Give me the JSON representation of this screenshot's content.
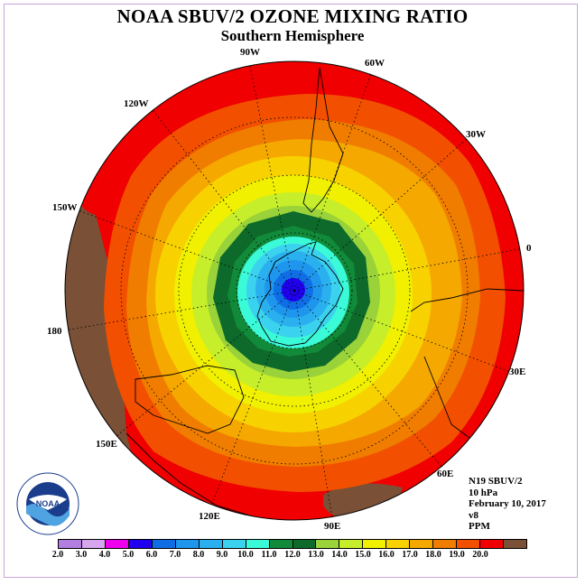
{
  "title": "NOAA SBUV/2 OZONE MIXING RATIO",
  "subtitle": "Southern Hemisphere",
  "meridian_labels": [
    "90W",
    "60W",
    "30W",
    "0",
    "30E",
    "60E",
    "90E",
    "120E",
    "150E",
    "180",
    "150W",
    "120W"
  ],
  "info": {
    "satellite": "N19 SBUV/2",
    "pressure": "10 hPa",
    "date": "February 10, 2017",
    "version": "v8",
    "units": "PPM"
  },
  "logo": {
    "text": "NOAA",
    "icon": "noaa-logo-icon"
  },
  "colorbar": {
    "colors": [
      "#b27ee0",
      "#d7a6ee",
      "#ee00ee",
      "#2000ee",
      "#0f6ee6",
      "#1f96ee",
      "#2ab0ee",
      "#3ad2ee",
      "#3afad8",
      "#118a3a",
      "#0d6a2a",
      "#9ad23a",
      "#c6ee2a",
      "#f0f000",
      "#f8d200",
      "#f5a800",
      "#f07d00",
      "#f25000",
      "#f00000",
      "#7a5036"
    ],
    "ticks": [
      "2.0",
      "3.0",
      "4.0",
      "5.0",
      "6.0",
      "7.0",
      "8.0",
      "9.0",
      "10.0",
      "11.0",
      "12.0",
      "13.0",
      "14.0",
      "15.0",
      "16.0",
      "17.0",
      "18.0",
      "19.0",
      "20.0"
    ]
  },
  "chart_data": {
    "type": "heatmap",
    "projection": "south polar stereographic",
    "field": "ozone mixing ratio",
    "units": "PPM",
    "color_scale": [
      2.0,
      3.0,
      4.0,
      5.0,
      6.0,
      7.0,
      8.0,
      9.0,
      10.0,
      11.0,
      12.0,
      13.0,
      14.0,
      15.0,
      16.0,
      17.0,
      18.0,
      19.0,
      20.0
    ],
    "pattern": "concentric bands; minimum (~5.0) at the South Pole, increasing outward to 19.0-20.0 near the equator"
  }
}
